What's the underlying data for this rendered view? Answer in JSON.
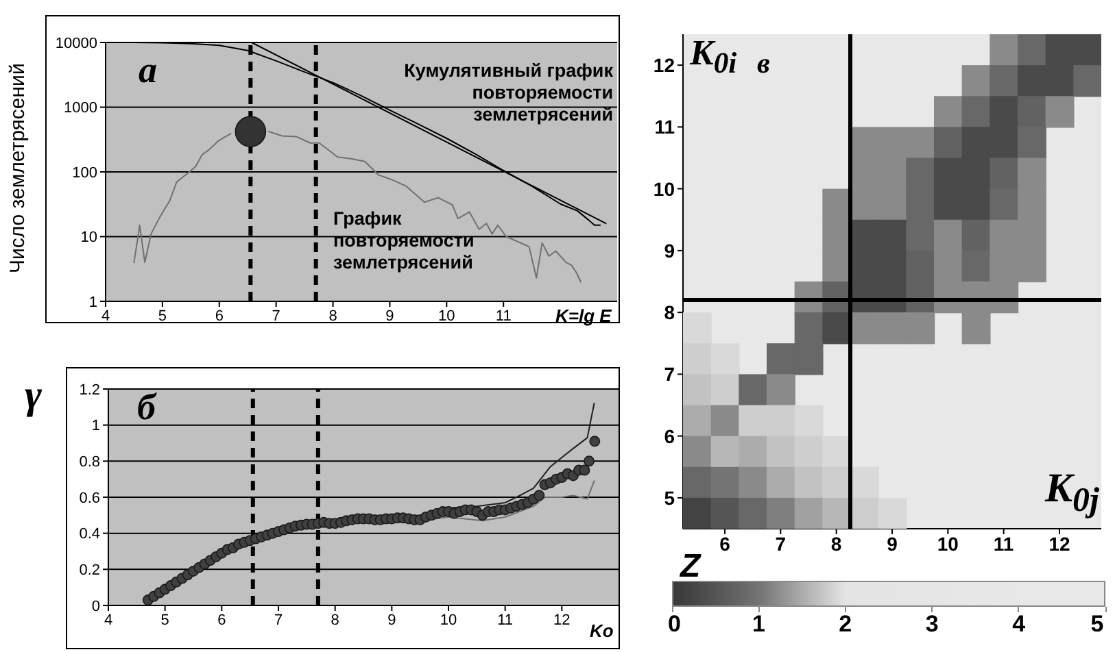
{
  "chart_data": [
    {
      "type": "line",
      "xlabel": "K=lg E",
      "ylabel": "Число землетрясений",
      "log": "y",
      "grid": "y",
      "xlim": [
        4,
        13
      ],
      "xticks": [
        4,
        5,
        6,
        7,
        8,
        9,
        10,
        11
      ],
      "ylim": [
        1,
        10000
      ],
      "yticks": [
        1,
        10,
        100,
        1000,
        10000
      ],
      "annotations": [
        "а",
        "Кумулятивный график повторяемости землетрясений",
        "График повторяемости землетрясений"
      ],
      "ref_lines": [
        {
          "axis": "x",
          "value": 6.55,
          "line_style": "dashed",
          "color": "#000000"
        },
        {
          "axis": "x",
          "value": 7.7,
          "line_style": "dashed",
          "color": "#000000"
        }
      ],
      "series": [
        {
          "color": "#000000",
          "x": [
            4.5,
            5,
            5.5,
            6,
            6.5,
            7,
            7.5,
            8,
            8.5,
            9,
            9.5,
            10,
            10.5,
            11,
            11.5,
            12,
            12.3,
            12.5,
            12.6,
            12.7
          ],
          "values": [
            10000,
            9900,
            9600,
            9000,
            7500,
            5200,
            3500,
            2400,
            1500,
            900,
            550,
            330,
            190,
            105,
            60,
            32,
            25,
            18,
            15,
            15
          ]
        },
        {
          "color": "#000000",
          "x": [
            6.57,
            12.8
          ],
          "values": [
            10000,
            16
          ]
        },
        {
          "color": "#707070",
          "x": [
            4.5,
            4.6,
            4.69,
            4.8,
            4.94,
            5.03,
            5.13,
            5.25,
            5.41,
            5.58,
            5.7,
            5.82,
            5.98,
            6.2,
            6.57,
            6.87,
            7.11,
            7.36,
            7.6,
            7.76,
            8.08,
            8.32,
            8.56,
            8.8,
            9.05,
            9.29,
            9.61,
            9.85,
            10.1,
            10.2,
            10.4,
            10.57,
            10.7,
            10.8,
            10.9,
            11.05,
            11.3,
            11.45,
            11.58,
            11.68,
            11.8,
            11.92,
            12.1,
            12.2,
            12.28,
            12.36
          ],
          "values": [
            4,
            15,
            4,
            11,
            19,
            26,
            36,
            70,
            90,
            120,
            185,
            220,
            300,
            390,
            null,
            420,
            360,
            350,
            280,
            280,
            170,
            160,
            145,
            90,
            75,
            60,
            34,
            40,
            31,
            19,
            24,
            13,
            16,
            11,
            15,
            10,
            8,
            7,
            2.3,
            8,
            5,
            6,
            4,
            3.6,
            2.8,
            2
          ]
        },
        {
          "type": "scatter",
          "marker": "circle",
          "color": "#333333",
          "x": [
            6.55
          ],
          "values": [
            420
          ]
        }
      ]
    },
    {
      "type": "line",
      "xlabel": "Ko",
      "ylabel": "γ",
      "grid": "y",
      "xlim": [
        4,
        13
      ],
      "xticks": [
        4,
        5,
        6,
        7,
        8,
        9,
        10,
        11,
        12
      ],
      "ylim": [
        0,
        1.2
      ],
      "yticks": [
        0,
        0.2,
        0.4,
        0.6,
        0.8,
        1,
        1.2
      ],
      "annotations": [
        "б"
      ],
      "ref_lines": [
        {
          "axis": "x",
          "value": 6.55,
          "line_style": "dashed",
          "color": "#000000"
        },
        {
          "axis": "x",
          "value": 7.7,
          "line_style": "dashed",
          "color": "#000000"
        }
      ],
      "series": [
        {
          "color": "#202020",
          "x": [
            9.5,
            10,
            10.5,
            11,
            11.2,
            11.5,
            11.8,
            12,
            12.2,
            12.45,
            12.57
          ],
          "values": [
            0.49,
            0.54,
            0.55,
            0.57,
            0.6,
            0.65,
            0.77,
            0.82,
            0.87,
            0.93,
            1.12
          ]
        },
        {
          "color": "#707070",
          "x": [
            9.5,
            10,
            10.6,
            11,
            11.5,
            11.7,
            12,
            12.2,
            12.45,
            12.57
          ],
          "values": [
            0.47,
            0.49,
            0.47,
            0.49,
            0.55,
            0.6,
            0.6,
            0.61,
            0.59,
            0.69
          ]
        },
        {
          "type": "scatter",
          "marker": "circle",
          "color": "#404040",
          "x": [
            4.7,
            4.8,
            4.9,
            5.0,
            5.1,
            5.2,
            5.3,
            5.4,
            5.5,
            5.6,
            5.7,
            5.8,
            5.9,
            6.0,
            6.1,
            6.2,
            6.3,
            6.4,
            6.5,
            6.6,
            6.7,
            6.8,
            6.9,
            7.0,
            7.1,
            7.2,
            7.3,
            7.4,
            7.5,
            7.6,
            7.7,
            7.8,
            7.9,
            8.0,
            8.1,
            8.2,
            8.3,
            8.4,
            8.5,
            8.6,
            8.7,
            8.8,
            8.9,
            9.0,
            9.1,
            9.2,
            9.3,
            9.4,
            9.5,
            9.6,
            9.7,
            9.8,
            9.9,
            10.0,
            10.1,
            10.2,
            10.3,
            10.4,
            10.5,
            10.6,
            10.7,
            10.8,
            10.9,
            11.0,
            11.1,
            11.2,
            11.3,
            11.4,
            11.5,
            11.6,
            11.7,
            11.8,
            11.9,
            12.0,
            12.1,
            12.2,
            12.3,
            12.4,
            12.48,
            12.58
          ],
          "values": [
            0.03,
            0.05,
            0.07,
            0.09,
            0.11,
            0.13,
            0.15,
            0.17,
            0.19,
            0.21,
            0.23,
            0.25,
            0.27,
            0.29,
            0.31,
            0.32,
            0.34,
            0.35,
            0.36,
            0.37,
            0.38,
            0.39,
            0.4,
            0.41,
            0.42,
            0.43,
            0.44,
            0.445,
            0.45,
            0.45,
            0.455,
            0.46,
            0.455,
            0.455,
            0.46,
            0.47,
            0.475,
            0.48,
            0.48,
            0.48,
            0.475,
            0.475,
            0.48,
            0.48,
            0.485,
            0.485,
            0.48,
            0.475,
            0.475,
            0.49,
            0.5,
            0.51,
            0.52,
            0.52,
            0.51,
            0.52,
            0.53,
            0.53,
            0.52,
            0.5,
            0.52,
            0.52,
            0.53,
            0.53,
            0.54,
            0.55,
            0.56,
            0.57,
            0.59,
            0.61,
            0.67,
            0.68,
            0.7,
            0.71,
            0.73,
            0.72,
            0.75,
            0.75,
            0.8,
            0.91
          ]
        }
      ]
    },
    {
      "type": "heatmap",
      "clabel": "Z",
      "xlim": [
        5.25,
        12.75
      ],
      "xticks": [
        6,
        7,
        8,
        9,
        10,
        11,
        12
      ],
      "ylim": [
        4.5,
        12.5
      ],
      "yticks": [
        5,
        6,
        7,
        8,
        9,
        10,
        11,
        12
      ],
      "clim": [
        0,
        5
      ],
      "cticks": [
        0,
        1,
        2,
        3,
        4,
        5
      ],
      "colors": [
        "#383838",
        "#747474",
        "#e4e4e4",
        "#e6e6e6",
        "#e8e8e8",
        "#e8e8e8"
      ],
      "annotations": [
        "в",
        "K$_{0i}$",
        "K$_{0j}$"
      ],
      "ref_lines": [
        {
          "axis": "x",
          "value": 8.25,
          "line_style": "solid",
          "color": "#000000"
        },
        {
          "axis": "y",
          "value": 8.2,
          "line_style": "solid",
          "color": "#000000"
        }
      ],
      "x": [
        5.5,
        6,
        6.5,
        7,
        7.5,
        8,
        8.5,
        9,
        9.5,
        10,
        10.5,
        11,
        11.5,
        12,
        12.5
      ],
      "y": [
        12.25,
        11.75,
        11.25,
        10.75,
        10.25,
        9.75,
        9.25,
        8.75,
        8.25,
        7.75,
        7.25,
        6.75,
        6.25,
        5.75,
        5.25,
        4.75
      ],
      "cells": [
        [
          null,
          null,
          null,
          null,
          null,
          null,
          null,
          null,
          null,
          null,
          null,
          1.2,
          0.8,
          0.3,
          0.3
        ],
        [
          null,
          null,
          null,
          null,
          null,
          null,
          null,
          null,
          null,
          null,
          1.2,
          0.8,
          0.3,
          0.3,
          0.8
        ],
        [
          null,
          null,
          null,
          null,
          null,
          null,
          null,
          null,
          null,
          1.2,
          0.8,
          0.3,
          0.7,
          1.2,
          null
        ],
        [
          null,
          null,
          null,
          null,
          null,
          null,
          1.2,
          1.2,
          1.2,
          0.7,
          0.3,
          0.3,
          0.8,
          null,
          null
        ],
        [
          null,
          null,
          null,
          null,
          null,
          null,
          1.2,
          1.2,
          0.8,
          0.3,
          0.3,
          0.7,
          1.2,
          null,
          null
        ],
        [
          null,
          null,
          null,
          null,
          null,
          1.2,
          1.2,
          1.2,
          0.8,
          0.3,
          0.3,
          0.8,
          1.2,
          null,
          null
        ],
        [
          null,
          null,
          null,
          null,
          null,
          1.2,
          0.3,
          0.3,
          0.8,
          1.2,
          0.7,
          1.2,
          1.2,
          null,
          null
        ],
        [
          null,
          null,
          null,
          null,
          null,
          1.2,
          0.3,
          0.3,
          0.7,
          1.2,
          0.8,
          1.2,
          1.2,
          null,
          null
        ],
        [
          null,
          null,
          null,
          null,
          1.2,
          0.7,
          0.3,
          0.3,
          0.7,
          1.2,
          1.2,
          1.2,
          null,
          null,
          null
        ],
        [
          1.9,
          null,
          null,
          null,
          0.8,
          0.3,
          1.2,
          1.2,
          1.2,
          null,
          1.2,
          null,
          null,
          null,
          null
        ],
        [
          1.8,
          1.9,
          null,
          0.8,
          0.8,
          null,
          null,
          null,
          null,
          null,
          null,
          null,
          null,
          null,
          null
        ],
        [
          1.7,
          1.8,
          0.8,
          1.2,
          null,
          null,
          null,
          null,
          null,
          null,
          null,
          null,
          null,
          null,
          null
        ],
        [
          1.5,
          1.2,
          1.8,
          1.8,
          1.9,
          null,
          null,
          null,
          null,
          null,
          null,
          null,
          null,
          null,
          null
        ],
        [
          1.2,
          1.6,
          1.5,
          1.7,
          1.8,
          1.9,
          null,
          null,
          null,
          null,
          null,
          null,
          null,
          null,
          null
        ],
        [
          0.8,
          1,
          1.2,
          1.5,
          1.7,
          1.8,
          1.9,
          null,
          null,
          null,
          null,
          null,
          null,
          null,
          null
        ],
        [
          0.2,
          0.5,
          0.8,
          1.1,
          1.4,
          1.6,
          1.8,
          1.9,
          null,
          null,
          null,
          null,
          null,
          null,
          null
        ]
      ]
    }
  ]
}
